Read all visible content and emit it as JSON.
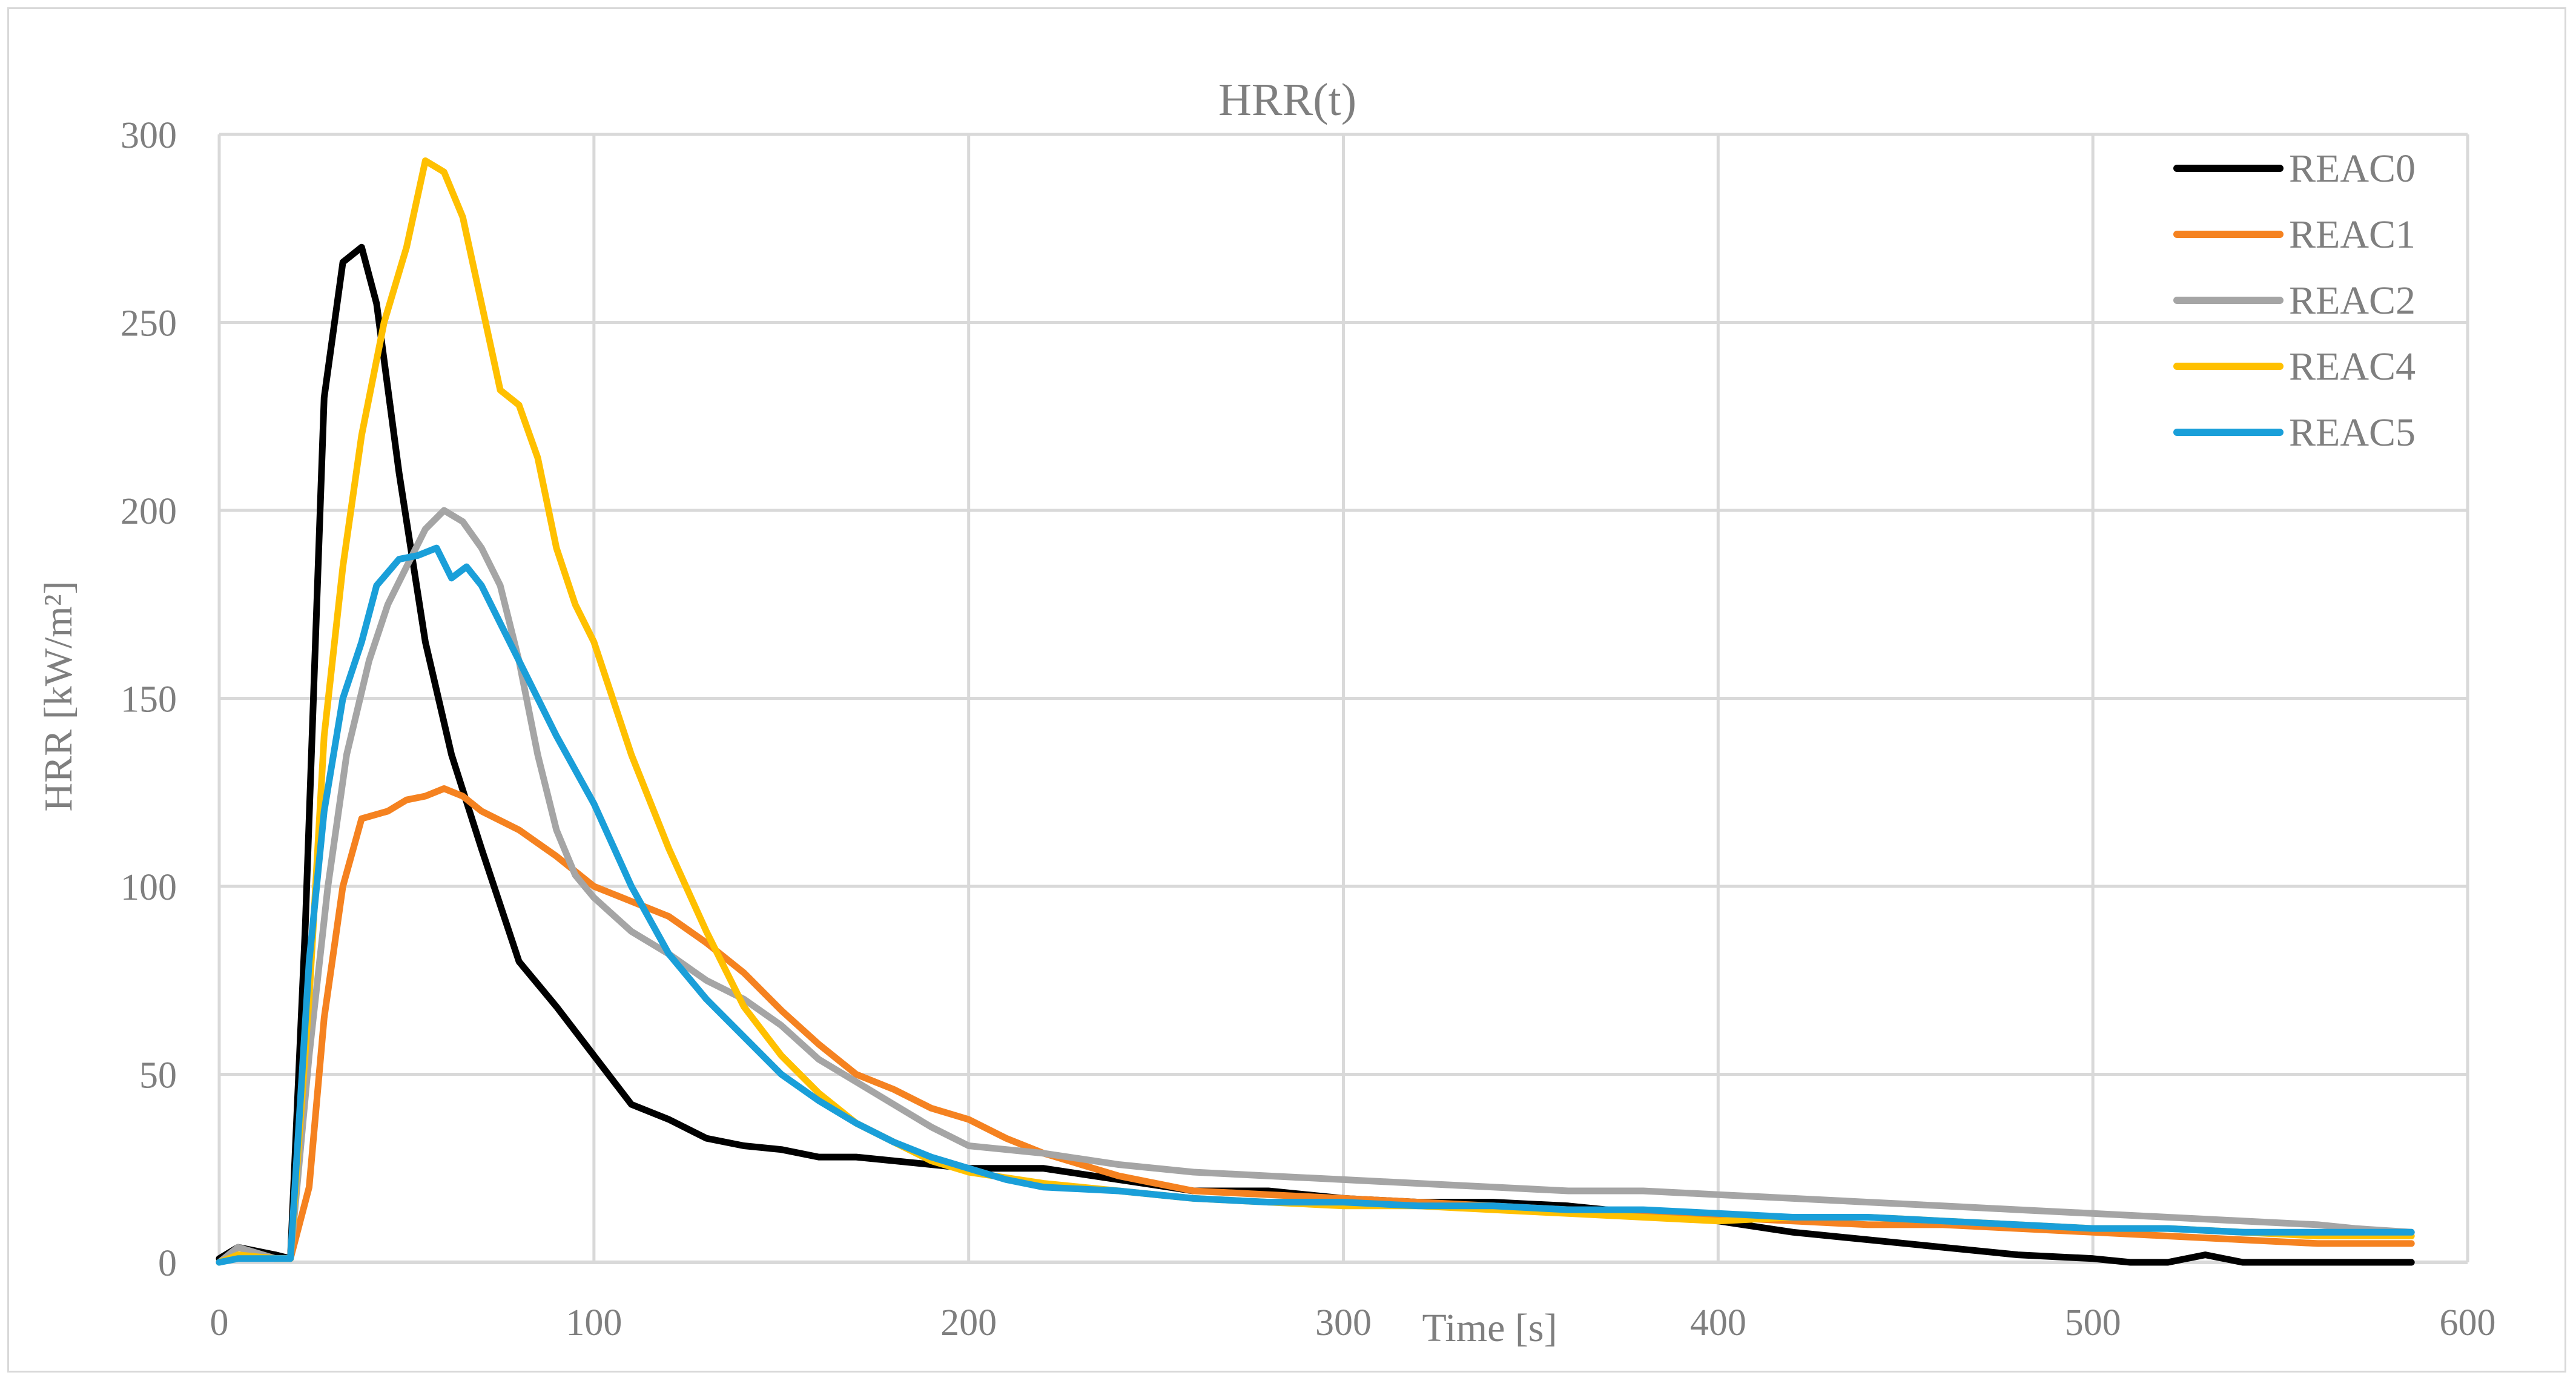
{
  "chart_data": {
    "type": "line",
    "title": "HRR(t)",
    "xlabel": "Time [s]",
    "ylabel": "HRR [kW/m²]",
    "xlim": [
      0,
      600
    ],
    "ylim": [
      0,
      300
    ],
    "xticks": [
      0,
      100,
      200,
      300,
      400,
      500,
      600
    ],
    "yticks": [
      0,
      50,
      100,
      150,
      200,
      250,
      300
    ],
    "xtick_labels": [
      "0",
      "100",
      "200",
      "300",
      "400",
      "500",
      "600"
    ],
    "ytick_labels": [
      "0",
      "50",
      "100",
      "150",
      "200",
      "250",
      "300"
    ],
    "grid": true,
    "legend_position": "top-right",
    "series": [
      {
        "name": "REAC0",
        "color": "#000000",
        "x": [
          0,
          5,
          15,
          19,
          23,
          28,
          33,
          38,
          42,
          48,
          55,
          62,
          70,
          80,
          90,
          100,
          110,
          120,
          130,
          140,
          150,
          160,
          170,
          180,
          190,
          200,
          220,
          240,
          260,
          280,
          300,
          320,
          340,
          360,
          380,
          400,
          420,
          440,
          460,
          480,
          500,
          510,
          520,
          530,
          540,
          560,
          585
        ],
        "y": [
          1,
          4,
          2,
          1,
          90,
          230,
          266,
          270,
          255,
          210,
          165,
          135,
          110,
          80,
          68,
          55,
          42,
          38,
          33,
          31,
          30,
          28,
          28,
          27,
          26,
          25,
          25,
          22,
          19,
          19,
          17,
          16,
          16,
          15,
          13,
          11,
          8,
          6,
          4,
          2,
          1,
          0,
          0,
          2,
          0,
          0,
          0
        ]
      },
      {
        "name": "REAC1",
        "color": "#f58220",
        "x": [
          0,
          5,
          15,
          19,
          24,
          28,
          33,
          38,
          45,
          50,
          55,
          60,
          65,
          70,
          80,
          90,
          100,
          110,
          120,
          130,
          140,
          150,
          160,
          170,
          180,
          190,
          200,
          210,
          220,
          240,
          260,
          280,
          300,
          320,
          340,
          360,
          380,
          400,
          420,
          440,
          460,
          480,
          500,
          520,
          540,
          560,
          585
        ],
        "y": [
          0,
          2,
          1,
          1,
          20,
          65,
          100,
          118,
          120,
          123,
          124,
          126,
          124,
          120,
          115,
          108,
          100,
          96,
          92,
          85,
          77,
          67,
          58,
          50,
          46,
          41,
          38,
          33,
          29,
          23,
          19,
          18,
          17,
          16,
          15,
          14,
          13,
          12,
          11,
          10,
          10,
          9,
          8,
          7,
          6,
          5,
          5
        ]
      },
      {
        "name": "REAC2",
        "color": "#a5a5a5",
        "x": [
          0,
          5,
          15,
          19,
          24,
          29,
          34,
          40,
          45,
          50,
          55,
          60,
          65,
          70,
          75,
          80,
          85,
          90,
          95,
          100,
          110,
          120,
          130,
          140,
          150,
          160,
          170,
          180,
          190,
          200,
          220,
          240,
          260,
          280,
          300,
          320,
          340,
          360,
          380,
          400,
          420,
          440,
          460,
          480,
          500,
          520,
          540,
          560,
          570,
          585
        ],
        "y": [
          0,
          4,
          1,
          1,
          55,
          100,
          135,
          160,
          175,
          185,
          195,
          200,
          197,
          190,
          180,
          160,
          135,
          115,
          103,
          97,
          88,
          82,
          75,
          70,
          63,
          54,
          48,
          42,
          36,
          31,
          29,
          26,
          24,
          23,
          22,
          21,
          20,
          19,
          19,
          18,
          17,
          16,
          15,
          14,
          13,
          12,
          11,
          10,
          9,
          8
        ]
      },
      {
        "name": "REAC4",
        "color": "#ffc000",
        "x": [
          0,
          5,
          15,
          19,
          24,
          28,
          33,
          38,
          44,
          50,
          55,
          60,
          65,
          70,
          75,
          80,
          85,
          90,
          95,
          100,
          110,
          120,
          130,
          140,
          150,
          160,
          170,
          180,
          190,
          200,
          220,
          240,
          260,
          280,
          300,
          320,
          340,
          360,
          380,
          400,
          420,
          440,
          460,
          480,
          500,
          520,
          540,
          560,
          585
        ],
        "y": [
          0,
          2,
          1,
          1,
          70,
          140,
          185,
          220,
          250,
          270,
          293,
          290,
          278,
          255,
          232,
          228,
          214,
          190,
          175,
          165,
          135,
          110,
          88,
          68,
          55,
          45,
          37,
          32,
          27,
          24,
          21,
          19,
          17,
          16,
          15,
          15,
          14,
          13,
          12,
          11,
          12,
          12,
          11,
          10,
          9,
          9,
          8,
          7,
          7
        ]
      },
      {
        "name": "REAC5",
        "color": "#1a9fd9",
        "x": [
          0,
          5,
          15,
          19,
          24,
          28,
          33,
          38,
          42,
          48,
          53,
          58,
          62,
          66,
          70,
          75,
          80,
          90,
          100,
          110,
          120,
          130,
          140,
          150,
          160,
          170,
          180,
          190,
          200,
          210,
          220,
          240,
          260,
          280,
          300,
          320,
          340,
          360,
          380,
          400,
          420,
          440,
          460,
          480,
          500,
          520,
          540,
          560,
          585
        ],
        "y": [
          0,
          1,
          1,
          1,
          80,
          120,
          150,
          165,
          180,
          187,
          188,
          190,
          182,
          185,
          180,
          170,
          160,
          140,
          122,
          100,
          82,
          70,
          60,
          50,
          43,
          37,
          32,
          28,
          25,
          22,
          20,
          19,
          17,
          16,
          16,
          15,
          15,
          14,
          14,
          13,
          12,
          12,
          11,
          10,
          9,
          9,
          8,
          8,
          8
        ]
      }
    ]
  }
}
